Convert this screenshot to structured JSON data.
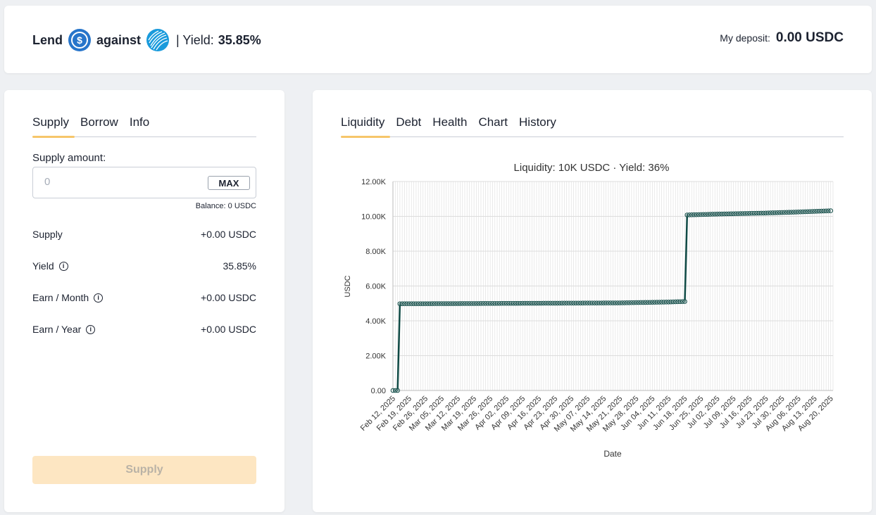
{
  "header": {
    "lend_label": "Lend",
    "against_label": "against",
    "yield_prefix": "| Yield:",
    "yield_value": "35.85%",
    "deposit_label": "My deposit:",
    "deposit_value": "0.00 USDC",
    "lend_token_icon": "usdc-coin-icon",
    "collateral_token_icon": "striped-globe-token-icon"
  },
  "left_tabs": [
    "Supply",
    "Borrow",
    "Info"
  ],
  "supply_form": {
    "amount_label": "Supply amount:",
    "amount_placeholder": "0",
    "max_label": "MAX",
    "balance_text": "Balance: 0 USDC",
    "rows": [
      {
        "label": "Supply",
        "value": "+0.00 USDC"
      },
      {
        "label": "Yield",
        "value": "35.85%"
      },
      {
        "label": "Earn / Month",
        "value": "+0.00 USDC"
      },
      {
        "label": "Earn / Year",
        "value": "+0.00 USDC"
      }
    ],
    "submit_label": "Supply"
  },
  "right_tabs": [
    "Liquidity",
    "Debt",
    "Health",
    "Chart",
    "History"
  ],
  "chart_data": {
    "type": "line",
    "title": "Liquidity: 10K USDC · Yield: 36%",
    "xlabel": "Date",
    "ylabel": "USDC",
    "ylim": [
      0,
      12000
    ],
    "yticks": [
      "0.00",
      "2.00K",
      "4.00K",
      "6.00K",
      "8.00K",
      "10.00K",
      "12.00K"
    ],
    "xticks": [
      "Feb 12, 2025",
      "Feb 19, 2025",
      "Feb 26, 2025",
      "Mar 05, 2025",
      "Mar 12, 2025",
      "Mar 19, 2025",
      "Mar 26, 2025",
      "Apr 02, 2025",
      "Apr 09, 2025",
      "Apr 16, 2025",
      "Apr 23, 2025",
      "Apr 30, 2025",
      "May 07, 2025",
      "May 14, 2025",
      "May 21, 2025",
      "May 28, 2025",
      "Jun 04, 2025",
      "Jun 11, 2025",
      "Jun 18, 2025",
      "Jun 25, 2025",
      "Jul 02, 2025",
      "Jul 09, 2025",
      "Jul 16, 2025",
      "Jul 23, 2025",
      "Jul 30, 2025",
      "Aug 06, 2025",
      "Aug 13, 2025",
      "Aug 20, 2025"
    ],
    "grid": true,
    "line_color": "#0f4a45",
    "series": [
      {
        "values": [
          [
            "2025-02-12",
            0
          ],
          [
            "2025-02-14",
            0
          ],
          [
            "2025-02-15",
            4980
          ],
          [
            "2025-03-12",
            4990
          ],
          [
            "2025-04-16",
            5010
          ],
          [
            "2025-05-21",
            5030
          ],
          [
            "2025-06-11",
            5080
          ],
          [
            "2025-06-18",
            5110
          ],
          [
            "2025-06-19",
            10080
          ],
          [
            "2025-07-02",
            10130
          ],
          [
            "2025-07-23",
            10190
          ],
          [
            "2025-08-06",
            10250
          ],
          [
            "2025-08-20",
            10320
          ]
        ]
      }
    ]
  }
}
